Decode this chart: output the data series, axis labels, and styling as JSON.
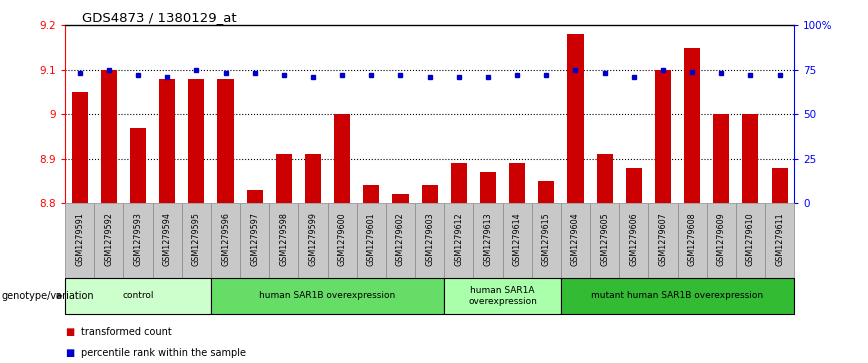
{
  "title": "GDS4873 / 1380129_at",
  "samples": [
    "GSM1279591",
    "GSM1279592",
    "GSM1279593",
    "GSM1279594",
    "GSM1279595",
    "GSM1279596",
    "GSM1279597",
    "GSM1279598",
    "GSM1279599",
    "GSM1279600",
    "GSM1279601",
    "GSM1279602",
    "GSM1279603",
    "GSM1279612",
    "GSM1279613",
    "GSM1279614",
    "GSM1279615",
    "GSM1279604",
    "GSM1279605",
    "GSM1279606",
    "GSM1279607",
    "GSM1279608",
    "GSM1279609",
    "GSM1279610",
    "GSM1279611"
  ],
  "bar_values": [
    9.05,
    9.1,
    8.97,
    9.08,
    9.08,
    9.08,
    8.83,
    8.91,
    8.91,
    9.0,
    8.84,
    8.82,
    8.84,
    8.89,
    8.87,
    8.89,
    8.85,
    9.18,
    8.91,
    8.88,
    9.1,
    9.15,
    9.0,
    9.0,
    8.88
  ],
  "percentile_values": [
    73,
    75,
    72,
    71,
    75,
    73,
    73,
    72,
    71,
    72,
    72,
    72,
    71,
    71,
    71,
    72,
    72,
    75,
    73,
    71,
    75,
    74,
    73,
    72,
    72
  ],
  "ylim_left": [
    8.8,
    9.2
  ],
  "ylim_right": [
    0,
    100
  ],
  "yticks_left": [
    8.8,
    8.9,
    9.0,
    9.1,
    9.2
  ],
  "ytick_labels_left": [
    "8.8",
    "8.9",
    "9",
    "9.1",
    "9.2"
  ],
  "yticks_right": [
    0,
    25,
    50,
    75,
    100
  ],
  "ytick_labels_right": [
    "0",
    "25",
    "50",
    "75",
    "100%"
  ],
  "bar_color": "#cc0000",
  "dot_color": "#0000cc",
  "groups": [
    {
      "label": "control",
      "start": 0,
      "end": 5,
      "color": "#ccffcc"
    },
    {
      "label": "human SAR1B overexpression",
      "start": 5,
      "end": 13,
      "color": "#66dd66"
    },
    {
      "label": "human SAR1A\noverexpression",
      "start": 13,
      "end": 17,
      "color": "#aaffaa"
    },
    {
      "label": "mutant human SAR1B overexpression",
      "start": 17,
      "end": 25,
      "color": "#33bb33"
    }
  ],
  "genotype_label": "genotype/variation",
  "legend_bar_label": "transformed count",
  "legend_dot_label": "percentile rank within the sample",
  "tick_box_color": "#c8c8c8",
  "tick_box_edge": "#888888"
}
